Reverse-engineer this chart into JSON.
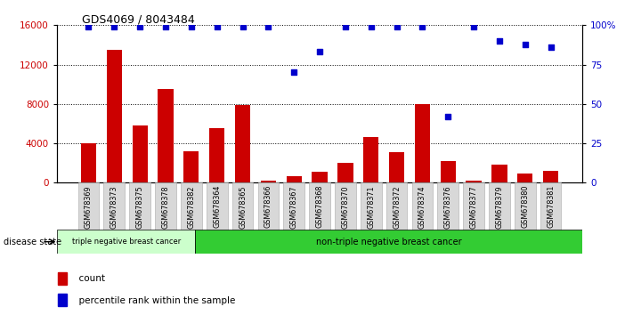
{
  "title": "GDS4069 / 8043484",
  "samples": [
    "GSM678369",
    "GSM678373",
    "GSM678375",
    "GSM678378",
    "GSM678382",
    "GSM678364",
    "GSM678365",
    "GSM678366",
    "GSM678367",
    "GSM678368",
    "GSM678370",
    "GSM678371",
    "GSM678372",
    "GSM678374",
    "GSM678376",
    "GSM678377",
    "GSM678379",
    "GSM678380",
    "GSM678381"
  ],
  "counts": [
    4000,
    13500,
    5800,
    9500,
    3200,
    5500,
    7900,
    200,
    700,
    1100,
    2000,
    4600,
    3100,
    8000,
    2200,
    200,
    1800,
    900,
    1200
  ],
  "percentiles": [
    99,
    99,
    99,
    99,
    99,
    99,
    99,
    99,
    70,
    83,
    99,
    99,
    99,
    99,
    42,
    99,
    90,
    88,
    86
  ],
  "group1_label": "triple negative breast cancer",
  "group2_label": "non-triple negative breast cancer",
  "group1_count": 5,
  "group2_count": 14,
  "bar_color": "#cc0000",
  "dot_color": "#0000cc",
  "legend_bar": "count",
  "legend_dot": "percentile rank within the sample",
  "ylim_left": [
    0,
    16000
  ],
  "ylim_right": [
    0,
    100
  ],
  "yticks_left": [
    0,
    4000,
    8000,
    12000,
    16000
  ],
  "yticks_right": [
    0,
    25,
    50,
    75,
    100
  ],
  "group1_color": "#ccffcc",
  "group2_color": "#33cc33",
  "disease_label": "disease state"
}
